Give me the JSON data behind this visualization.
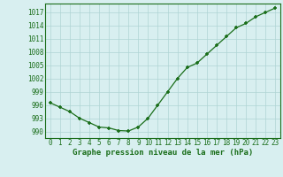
{
  "x": [
    0,
    1,
    2,
    3,
    4,
    5,
    6,
    7,
    8,
    9,
    10,
    11,
    12,
    13,
    14,
    15,
    16,
    17,
    18,
    19,
    20,
    21,
    22,
    23
  ],
  "y": [
    996.5,
    995.5,
    994.5,
    993.0,
    992.0,
    991.0,
    990.8,
    990.2,
    990.1,
    991.0,
    993.0,
    996.0,
    999.0,
    1002.0,
    1004.5,
    1005.5,
    1007.5,
    1009.5,
    1011.5,
    1013.5,
    1014.5,
    1016.0,
    1017.0,
    1018.0
  ],
  "line_color": "#1a6e1a",
  "marker": "+",
  "bg_color": "#d8eff0",
  "grid_color": "#afd4d4",
  "xlabel": "Graphe pression niveau de la mer (hPa)",
  "xlabel_color": "#1a6e1a",
  "yticks": [
    990,
    993,
    996,
    999,
    1002,
    1005,
    1008,
    1011,
    1014,
    1017
  ],
  "xticks": [
    0,
    1,
    2,
    3,
    4,
    5,
    6,
    7,
    8,
    9,
    10,
    11,
    12,
    13,
    14,
    15,
    16,
    17,
    18,
    19,
    20,
    21,
    22,
    23
  ],
  "ylim": [
    988.5,
    1019.0
  ],
  "xlim": [
    -0.5,
    23.5
  ],
  "tick_fontsize": 5.5,
  "xlabel_fontsize": 6.5
}
